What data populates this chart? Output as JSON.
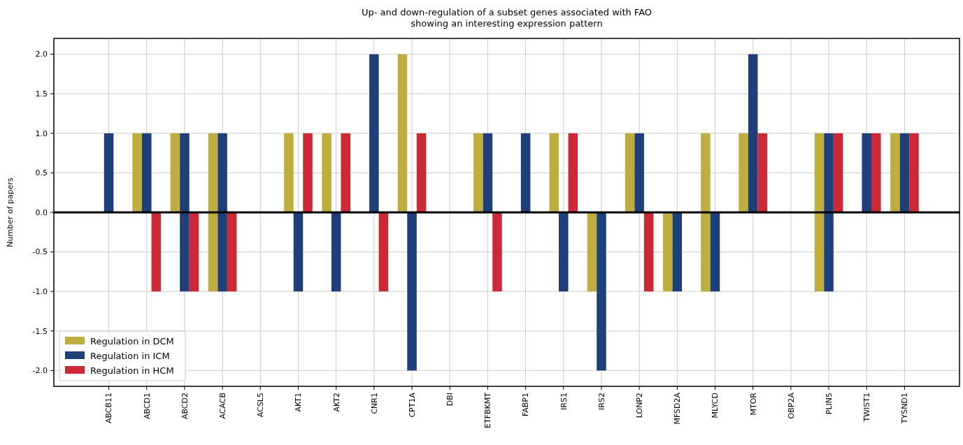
{
  "chart_data": {
    "type": "bar",
    "title": "Up- and down-regulation of a subset genes associated with FAO\nshowing an interesting expression pattern",
    "ylabel": "Number of papers",
    "categories": [
      "ABCB11",
      "ABCD1",
      "ABCD2",
      "ACACB",
      "ACSL5",
      "AKT1",
      "AKT2",
      "CNR1",
      "CPT1A",
      "DBI",
      "ETFBKMT",
      "FABP1",
      "IRS1",
      "IRS2",
      "LONP2",
      "MFSD2A",
      "MLYCD",
      "MTOR",
      "OBP2A",
      "PLIN5",
      "TWIST1",
      "TYSND1"
    ],
    "series": [
      {
        "name": "Regulation in DCM",
        "color": "#bfae3e",
        "base": [
          null,
          0,
          0,
          -1,
          null,
          0,
          0,
          null,
          0,
          null,
          0,
          null,
          0,
          -1,
          0,
          -1,
          -1,
          0,
          null,
          -1,
          null,
          0
        ],
        "values": [
          null,
          1,
          1,
          2,
          null,
          1,
          1,
          null,
          2,
          null,
          1,
          null,
          1,
          1,
          1,
          1,
          2,
          1,
          null,
          2,
          null,
          1
        ]
      },
      {
        "name": "Regulation in ICM",
        "color": "#1f3f7a",
        "base": [
          0,
          0,
          -1,
          -1,
          null,
          -1,
          -1,
          0,
          -2,
          null,
          0,
          0,
          -1,
          -2,
          0,
          -1,
          -1,
          0,
          null,
          -1,
          0,
          0
        ],
        "values": [
          1,
          1,
          2,
          2,
          null,
          1,
          1,
          2,
          2,
          null,
          1,
          1,
          1,
          2,
          1,
          1,
          1,
          2,
          null,
          2,
          1,
          1
        ]
      },
      {
        "name": "Regulation in HCM",
        "color": "#cc2936",
        "base": [
          null,
          -1,
          -1,
          -1,
          null,
          0,
          0,
          -1,
          0,
          null,
          -1,
          null,
          0,
          null,
          -1,
          null,
          null,
          0,
          null,
          0,
          0,
          0
        ],
        "values": [
          null,
          1,
          1,
          1,
          null,
          1,
          1,
          1,
          1,
          null,
          1,
          null,
          1,
          null,
          1,
          null,
          null,
          1,
          null,
          1,
          1,
          1
        ]
      }
    ],
    "ylim": [
      -2.2,
      2.2
    ],
    "yticks": [
      {
        "value": -2,
        "label": "-2.0"
      },
      {
        "value": -1.5,
        "label": "-1.5"
      },
      {
        "value": -1,
        "label": "-1.0"
      },
      {
        "value": -0.5,
        "label": "-0.5"
      },
      {
        "value": 0,
        "label": "0.0"
      },
      {
        "value": 0.5,
        "label": "0.5"
      },
      {
        "value": 1,
        "label": "1.0"
      },
      {
        "value": 1.5,
        "label": "1.5"
      },
      {
        "value": 2,
        "label": "2.0"
      }
    ],
    "ref_lines": [
      {
        "axis": "y",
        "value": 0,
        "color": "#000000"
      }
    ],
    "grid": true,
    "legend": "bottom left"
  }
}
